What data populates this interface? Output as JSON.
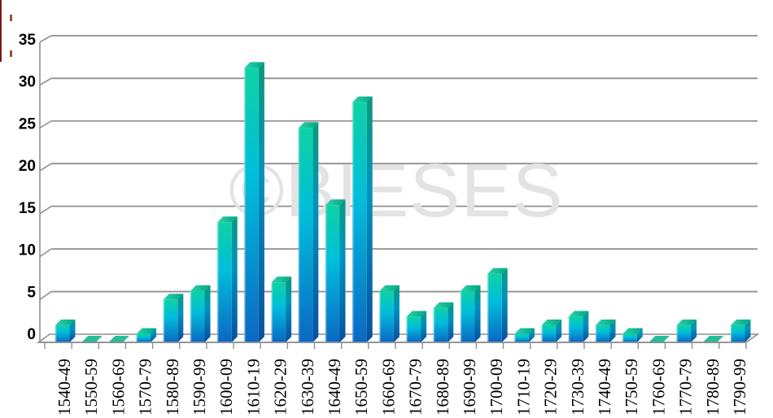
{
  "watermark": {
    "text": "©BIESES",
    "color": "#e3e3e3"
  },
  "artifacts": {
    "left_stripe_color": "#7b1812",
    "speck_color": "#7c3a10"
  },
  "chart_data": {
    "type": "bar",
    "style": "3d-cuboid-bars",
    "categories": [
      "1540-49",
      "1550-59",
      "1560-69",
      "1570-79",
      "1580-89",
      "1590-99",
      "1600-09",
      "1610-19",
      "1620-29",
      "1630-39",
      "1640-49",
      "1650-59",
      "1660-69",
      "1670-79",
      "1680-89",
      "1690-99",
      "1700-09",
      "1710-19",
      "1720-29",
      "1730-39",
      "1740-49",
      "1750-59",
      "1760-69",
      "1770-79",
      "1780-89",
      "1790-99"
    ],
    "values": [
      2,
      0,
      0,
      1,
      5,
      6,
      14,
      32,
      7,
      25,
      16,
      28,
      6,
      3,
      4,
      6,
      8,
      1,
      2,
      3,
      2,
      1,
      0,
      2,
      0,
      2
    ],
    "y_ticks": [
      0,
      5,
      10,
      15,
      20,
      25,
      30,
      35
    ],
    "ylim": [
      0,
      35
    ],
    "xlabel": "",
    "ylabel": "",
    "grid": true,
    "legend": "none",
    "gridline_color": "#8f8f8f",
    "axis_text_color": "#000000",
    "colors": {
      "front_top": "#0ed2a4",
      "front_mid": "#00bedb",
      "front_bottom": "#0b68c3",
      "side_top": "#089a7e",
      "side_mid": "#0092bd",
      "side_bottom": "#084f9e",
      "top_light": "#2ed1a8",
      "top_dark": "#00a787",
      "zero_marker": "#27bd9a",
      "zero_edge": "#14a385"
    }
  }
}
